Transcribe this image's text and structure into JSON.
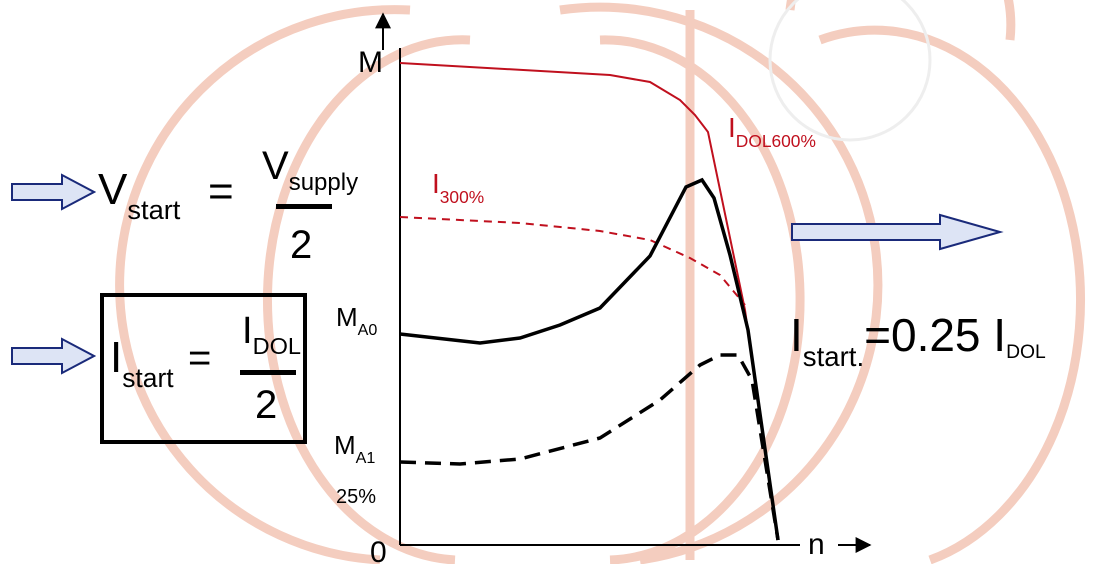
{
  "axis": {
    "y_label": "M",
    "x_label": "n",
    "origin": "0"
  },
  "levels": {
    "ma0": {
      "main": "M",
      "sub": "A0"
    },
    "ma1": {
      "main": "M",
      "sub": "A1"
    },
    "pct": "25%"
  },
  "curves": {
    "dol": {
      "main": "I",
      "sub": "DOL600%"
    },
    "i300": {
      "main": "I",
      "sub": "300%"
    }
  },
  "formulas": {
    "v_start": {
      "main": "V",
      "sub": "start",
      "eq": "=",
      "num_main": "V",
      "num_sub": "supply",
      "den": "2"
    },
    "i_start": {
      "main": "I",
      "sub": "start",
      "eq": "=",
      "num_main": "I",
      "num_sub": "DOL",
      "den": "2"
    },
    "result": {
      "main": "I",
      "sub": "start.",
      "eq": "=0.25 I",
      "tail_sub": "DOL"
    }
  },
  "colors": {
    "red_curve": "#c0101e",
    "arrow_fill": "#dde4f5",
    "arrow_stroke": "#1a2a7a",
    "watermark": "#f3c7b8"
  },
  "icons": [
    "arrow-right-icon",
    "arrow-up-icon"
  ]
}
